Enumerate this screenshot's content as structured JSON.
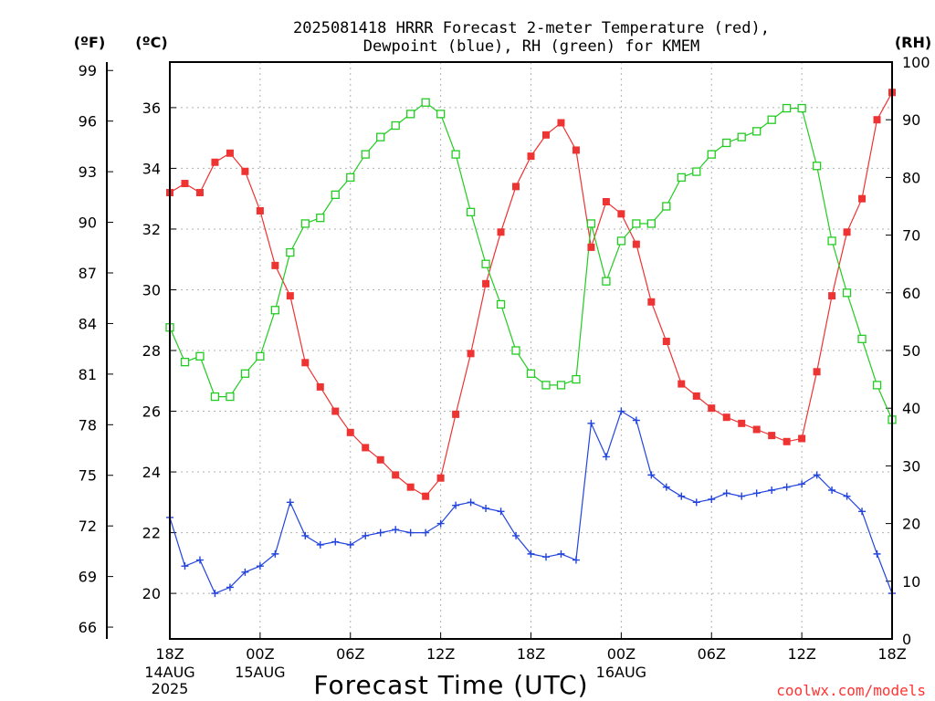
{
  "title_line1": "2025081418 HRRR Forecast 2-meter Temperature (red),",
  "title_line2": "Dewpoint (blue), RH (green) for KMEM",
  "unit_f": "(ºF)",
  "unit_c": "(ºC)",
  "unit_rh": "(RH)",
  "xlabel": "Forecast Time (UTC)",
  "credit": "coolwx.com/models",
  "colors": {
    "temperature": "#ee3333",
    "dewpoint": "#2244dd",
    "rh": "#22cc22",
    "grid": "#b0b0b0"
  },
  "chart_data": {
    "type": "line",
    "x_ticks": [
      "18Z",
      "00Z",
      "06Z",
      "12Z",
      "18Z",
      "00Z",
      "06Z",
      "12Z",
      "18Z"
    ],
    "x_date_labels": [
      {
        "tick": 0,
        "lines": [
          "14AUG",
          "2025"
        ]
      },
      {
        "tick": 1,
        "lines": [
          "15AUG"
        ]
      },
      {
        "tick": 5,
        "lines": [
          "16AUG"
        ]
      }
    ],
    "x_range_hours": [
      0,
      48
    ],
    "celsius_ticks": [
      20,
      22,
      24,
      26,
      28,
      30,
      32,
      34,
      36
    ],
    "fahrenheit_ticks": [
      66,
      69,
      72,
      75,
      78,
      81,
      84,
      87,
      90,
      93,
      96,
      99
    ],
    "rh_ticks": [
      0,
      10,
      20,
      30,
      40,
      50,
      60,
      70,
      80,
      90,
      100
    ],
    "ylim_celsius": [
      18.5,
      37.5
    ],
    "ylim_rh": [
      0,
      100
    ],
    "series": [
      {
        "name": "Temperature",
        "axis": "celsius",
        "marker": "filled-square",
        "color": "#ee3333",
        "values": [
          33.2,
          33.5,
          33.2,
          34.2,
          34.5,
          33.9,
          32.6,
          30.8,
          29.8,
          27.6,
          26.8,
          26.0,
          25.3,
          24.8,
          24.4,
          23.9,
          23.5,
          23.2,
          23.8,
          25.9,
          27.9,
          30.2,
          31.9,
          33.4,
          34.4,
          35.1,
          35.5,
          34.6,
          31.4,
          32.9,
          32.5,
          31.5,
          29.6,
          28.3,
          26.9,
          26.5,
          26.1,
          25.8,
          25.6,
          25.4,
          25.2,
          25.0,
          25.1,
          27.3,
          29.8,
          31.9,
          33.0,
          35.6,
          36.5
        ]
      },
      {
        "name": "Dewpoint",
        "axis": "celsius",
        "marker": "plus",
        "color": "#2244dd",
        "values": [
          22.5,
          20.9,
          21.1,
          20.0,
          20.2,
          20.7,
          20.9,
          21.3,
          23.0,
          21.9,
          21.6,
          21.7,
          21.6,
          21.9,
          22.0,
          22.1,
          22.0,
          22.0,
          22.3,
          22.9,
          23.0,
          22.8,
          22.7,
          21.9,
          21.3,
          21.2,
          21.3,
          21.1,
          25.6,
          24.5,
          26.0,
          25.7,
          23.9,
          23.5,
          23.2,
          23.0,
          23.1,
          23.3,
          23.2,
          23.3,
          23.4,
          23.5,
          23.6,
          23.9,
          23.4,
          23.2,
          22.7,
          21.3,
          20.0
        ]
      },
      {
        "name": "RH",
        "axis": "rh",
        "marker": "open-square",
        "color": "#22cc22",
        "values": [
          54,
          48,
          49,
          42,
          42,
          46,
          49,
          57,
          67,
          72,
          73,
          77,
          80,
          84,
          87,
          89,
          91,
          93,
          91,
          84,
          74,
          65,
          58,
          50,
          46,
          44,
          44,
          45,
          72,
          62,
          69,
          72,
          72,
          75,
          80,
          81,
          84,
          86,
          87,
          88,
          90,
          92,
          92,
          82,
          69,
          60,
          52,
          44,
          38
        ]
      }
    ]
  }
}
